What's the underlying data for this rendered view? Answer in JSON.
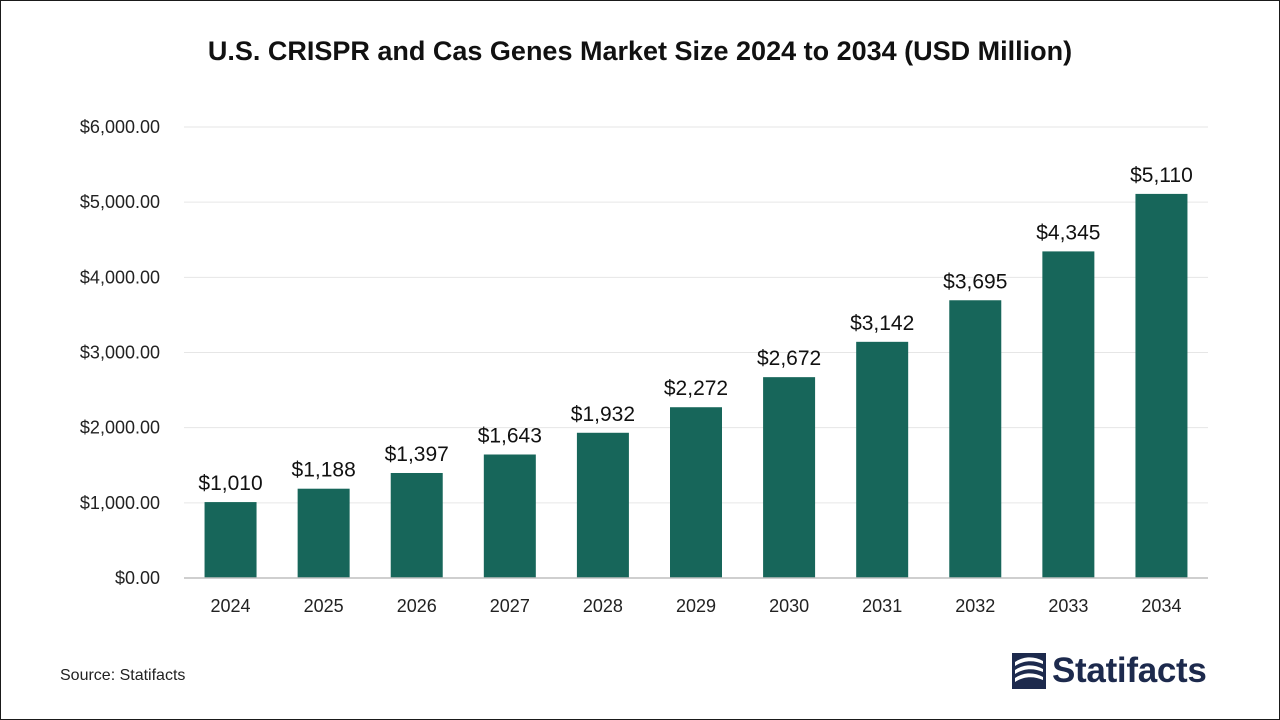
{
  "title": "U.S. CRISPR and Cas Genes Market Size 2024 to 2034 (USD Million)",
  "source": "Source: Statifacts",
  "brand": {
    "name": "Statifacts",
    "logo_icon": "statifacts-logo-icon"
  },
  "colors": {
    "bar": "#17665a",
    "gridline": "#e6e6e6",
    "axis": "#bfbfbf",
    "brand": "#1d2a4d"
  },
  "chart_data": {
    "type": "bar",
    "title": "U.S. CRISPR and Cas Genes Market Size 2024 to 2034 (USD Million)",
    "xlabel": "",
    "ylabel": "",
    "categories": [
      "2024",
      "2025",
      "2026",
      "2027",
      "2028",
      "2029",
      "2030",
      "2031",
      "2032",
      "2033",
      "2034"
    ],
    "values": [
      1010,
      1188,
      1397,
      1643,
      1932,
      2272,
      2672,
      3142,
      3695,
      4345,
      5110
    ],
    "data_labels": [
      "$1,010",
      "$1,188",
      "$1,397",
      "$1,643",
      "$1,932",
      "$2,272",
      "$2,672",
      "$3,142",
      "$3,695",
      "$4,345",
      "$5,110"
    ],
    "ylim": [
      0,
      6000
    ],
    "yticks": [
      0,
      1000,
      2000,
      3000,
      4000,
      5000,
      6000
    ],
    "ytick_labels": [
      "$0.00",
      "$1,000.00",
      "$2,000.00",
      "$3,000.00",
      "$4,000.00",
      "$5,000.00",
      "$6,000.00"
    ],
    "grid": true,
    "legend": "none"
  }
}
